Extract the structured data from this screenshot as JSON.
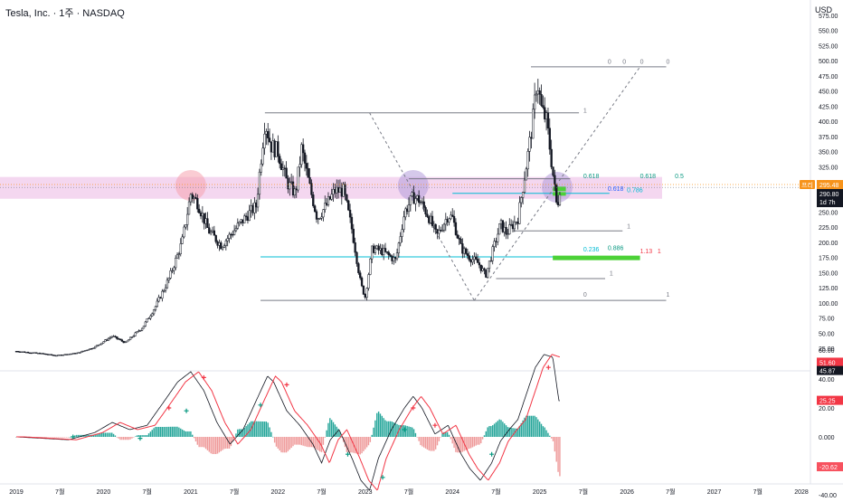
{
  "header": {
    "title": "Tesla, Inc. · 1주 · NASDAQ",
    "currency": "USD"
  },
  "chart_data": [
    {
      "type": "line",
      "subtype": "candlestick",
      "title": "Tesla, Inc. · 1주 · NASDAQ",
      "xlabel": "",
      "ylabel": "",
      "ylim": [
        0,
        580
      ],
      "grid": false,
      "price_ticks": [
        "575.00",
        "550.00",
        "525.00",
        "500.00",
        "475.00",
        "450.00",
        "425.00",
        "400.00",
        "375.00",
        "350.00",
        "325.00",
        "300.00",
        "275.00",
        "250.00",
        "225.00",
        "200.00",
        "175.00",
        "150.00",
        "125.00",
        "100.00",
        "75.00",
        "50.00",
        "25.00"
      ],
      "time_ticks": [
        "2019",
        "7월",
        "2020",
        "7월",
        "2021",
        "7월",
        "2022",
        "7월",
        "2023",
        "7월",
        "2024",
        "7월",
        "2025",
        "7월",
        "2026",
        "7월",
        "2027",
        "7월",
        "2028"
      ],
      "time_tick_years": [
        2019.0,
        2019.5,
        2020.0,
        2020.5,
        2021.0,
        2021.5,
        2022.0,
        2022.5,
        2023.0,
        2023.5,
        2024.0,
        2024.5,
        2025.0,
        2025.5,
        2026.0,
        2026.5,
        2027.0,
        2027.5,
        2028.0
      ],
      "price_path": [
        [
          2019.0,
          20
        ],
        [
          2019.3,
          16
        ],
        [
          2019.45,
          13
        ],
        [
          2019.7,
          17
        ],
        [
          2019.9,
          27
        ],
        [
          2020.1,
          45
        ],
        [
          2020.25,
          34
        ],
        [
          2020.45,
          60
        ],
        [
          2020.6,
          95
        ],
        [
          2020.75,
          140
        ],
        [
          2020.9,
          200
        ],
        [
          2021.0,
          280
        ],
        [
          2021.08,
          265
        ],
        [
          2021.2,
          220
        ],
        [
          2021.35,
          195
        ],
        [
          2021.5,
          220
        ],
        [
          2021.65,
          245
        ],
        [
          2021.75,
          260
        ],
        [
          2021.85,
          400
        ],
        [
          2021.92,
          360
        ],
        [
          2022.0,
          350
        ],
        [
          2022.1,
          300
        ],
        [
          2022.2,
          280
        ],
        [
          2022.27,
          355
        ],
        [
          2022.35,
          300
        ],
        [
          2022.45,
          240
        ],
        [
          2022.55,
          260
        ],
        [
          2022.65,
          285
        ],
        [
          2022.75,
          285
        ],
        [
          2022.85,
          220
        ],
        [
          2022.95,
          130
        ],
        [
          2023.0,
          110
        ],
        [
          2023.08,
          190
        ],
        [
          2023.2,
          185
        ],
        [
          2023.35,
          170
        ],
        [
          2023.45,
          250
        ],
        [
          2023.55,
          275
        ],
        [
          2023.62,
          270
        ],
        [
          2023.72,
          245
        ],
        [
          2023.82,
          210
        ],
        [
          2023.95,
          245
        ],
        [
          2024.0,
          240
        ],
        [
          2024.1,
          190
        ],
        [
          2024.2,
          175
        ],
        [
          2024.3,
          165
        ],
        [
          2024.38,
          145
        ],
        [
          2024.45,
          180
        ],
        [
          2024.55,
          230
        ],
        [
          2024.62,
          215
        ],
        [
          2024.75,
          240
        ],
        [
          2024.85,
          330
        ],
        [
          2024.92,
          400
        ],
        [
          2024.97,
          470
        ],
        [
          2025.02,
          420
        ],
        [
          2025.08,
          400
        ],
        [
          2025.13,
          340
        ],
        [
          2025.2,
          255
        ],
        [
          2025.23,
          290
        ]
      ],
      "current_price": "290.80",
      "current_price_value": 290.8,
      "current_time_label": "1d 7h",
      "previous_close_label": "프리",
      "previous_close": "295.48",
      "previous_close_value": 295.48,
      "fib_labels": [
        {
          "text": "0",
          "x": 2025.78,
          "y": 495,
          "color": "#787b86"
        },
        {
          "text": "0",
          "x": 2025.95,
          "y": 495,
          "color": "#787b86"
        },
        {
          "text": "0",
          "x": 2026.15,
          "y": 495,
          "color": "#787b86"
        },
        {
          "text": "0",
          "x": 2026.45,
          "y": 495,
          "color": "#787b86"
        },
        {
          "text": "1",
          "x": 2025.5,
          "y": 414,
          "color": "#787b86"
        },
        {
          "text": "0.618",
          "x": 2025.5,
          "y": 306,
          "color": "#089981"
        },
        {
          "text": "0.618",
          "x": 2026.15,
          "y": 306,
          "color": "#089981"
        },
        {
          "text": "0.5",
          "x": 2026.55,
          "y": 306,
          "color": "#089981"
        },
        {
          "text": "0.618",
          "x": 2025.78,
          "y": 285,
          "color": "#2962ff"
        },
        {
          "text": "0.786",
          "x": 2026.0,
          "y": 283,
          "color": "#00bcd4"
        },
        {
          "text": "1",
          "x": 2026.0,
          "y": 223,
          "color": "#787b86"
        },
        {
          "text": "0.236",
          "x": 2025.5,
          "y": 185,
          "color": "#00bcd4"
        },
        {
          "text": "0.886",
          "x": 2025.78,
          "y": 187,
          "color": "#089981"
        },
        {
          "text": "1.13",
          "x": 2026.15,
          "y": 182,
          "color": "#f23645"
        },
        {
          "text": "1",
          "x": 2026.35,
          "y": 182,
          "color": "#f23645"
        },
        {
          "text": "1",
          "x": 2025.8,
          "y": 145,
          "color": "#787b86"
        },
        {
          "text": "0",
          "x": 2025.5,
          "y": 110,
          "color": "#787b86"
        },
        {
          "text": "1",
          "x": 2026.45,
          "y": 110,
          "color": "#787b86"
        }
      ]
    },
    {
      "type": "bar",
      "name": "momentum oscillator",
      "ylim": [
        -45,
        65
      ],
      "ticks": [
        "60.00",
        "40.00",
        "20.00",
        "0.000",
        "-20.00",
        "-40.00"
      ],
      "tick_values": [
        60,
        40,
        20,
        0,
        -20,
        -40
      ],
      "oscillator_path": [
        [
          2019.0,
          0
        ],
        [
          2019.3,
          -1
        ],
        [
          2019.6,
          -2
        ],
        [
          2019.9,
          3
        ],
        [
          2020.1,
          10
        ],
        [
          2020.3,
          5
        ],
        [
          2020.5,
          8
        ],
        [
          2020.7,
          25
        ],
        [
          2020.85,
          38
        ],
        [
          2021.0,
          45
        ],
        [
          2021.15,
          32
        ],
        [
          2021.3,
          10
        ],
        [
          2021.45,
          -5
        ],
        [
          2021.6,
          5
        ],
        [
          2021.75,
          25
        ],
        [
          2021.88,
          42
        ],
        [
          2021.95,
          38
        ],
        [
          2022.1,
          18
        ],
        [
          2022.25,
          8
        ],
        [
          2022.4,
          -5
        ],
        [
          2022.5,
          -18
        ],
        [
          2022.6,
          -2
        ],
        [
          2022.7,
          5
        ],
        [
          2022.85,
          -15
        ],
        [
          2022.95,
          -30
        ],
        [
          2023.05,
          -37
        ],
        [
          2023.15,
          -15
        ],
        [
          2023.3,
          5
        ],
        [
          2023.45,
          20
        ],
        [
          2023.55,
          28
        ],
        [
          2023.65,
          20
        ],
        [
          2023.8,
          2
        ],
        [
          2023.95,
          8
        ],
        [
          2024.1,
          -12
        ],
        [
          2024.2,
          -22
        ],
        [
          2024.32,
          -30
        ],
        [
          2024.45,
          -18
        ],
        [
          2024.55,
          -3
        ],
        [
          2024.65,
          5
        ],
        [
          2024.75,
          12
        ],
        [
          2024.85,
          30
        ],
        [
          2024.95,
          48
        ],
        [
          2025.05,
          57
        ],
        [
          2025.15,
          55
        ],
        [
          2025.22,
          25
        ]
      ],
      "signal_labels": [
        {
          "text": "51.60",
          "value": 51.6,
          "bg": "#f23645",
          "fg": "#ffffff"
        },
        {
          "text": "45.87",
          "value": 45.87,
          "bg": "#131722",
          "fg": "#ffffff"
        },
        {
          "text": "25.25",
          "value": 25.25,
          "bg": "#f23645",
          "fg": "#ffffff"
        },
        {
          "text": "-20.62",
          "value": -20.62,
          "bg": "#f7525f",
          "fg": "#ffffff"
        }
      ]
    }
  ],
  "colors": {
    "candle": "#131722",
    "fib_gray": "#787b86",
    "cyan": "#00bcd4",
    "green": "#089981",
    "bright_green": "#4cd137",
    "red": "#f23645",
    "pink_zone": "#f0c6ea",
    "pink_circle": "#f5a3ae",
    "purple_circle": "#b39ddb",
    "price_tag": "#131722",
    "prev_tag": "#f7931a"
  }
}
